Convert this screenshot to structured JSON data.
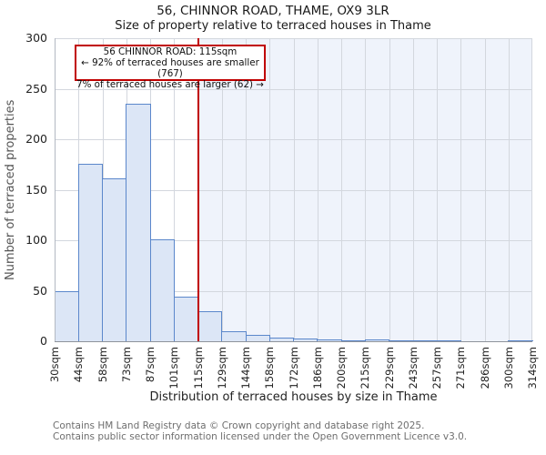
{
  "title": "56, CHINNOR ROAD, THAME, OX9 3LR",
  "subtitle": "Size of property relative to terraced houses in Thame",
  "annotation": {
    "line1": "56 CHINNOR ROAD: 115sqm",
    "line2": "← 92% of terraced houses are smaller (767)",
    "line3": "7% of terraced houses are larger (62) →"
  },
  "chart_data": {
    "type": "bar",
    "subtype": "histogram",
    "title": "56, CHINNOR ROAD, THAME, OX9 3LR",
    "subtitle": "Size of property relative to terraced houses in Thame",
    "xlabel": "Distribution of terraced houses by size in Thame",
    "ylabel": "Number of terraced properties",
    "tick_suffix": "sqm",
    "bin_edges": [
      30,
      44,
      58,
      73,
      87,
      101,
      115,
      129,
      144,
      158,
      172,
      186,
      200,
      215,
      229,
      243,
      257,
      271,
      286,
      300,
      314
    ],
    "values": [
      50,
      176,
      161,
      235,
      101,
      44,
      30,
      10,
      6,
      4,
      3,
      2,
      1,
      2,
      1,
      1,
      1,
      0,
      0,
      1
    ],
    "marker_value": 115,
    "smaller_count": 767,
    "larger_count": 62,
    "smaller_pct": 92,
    "larger_pct": 7,
    "ylim": [
      0,
      300
    ],
    "ytick_step": 50,
    "grid": true,
    "legend": "none"
  },
  "footer": {
    "line1": "Contains HM Land Registry data © Crown copyright and database right 2025.",
    "line2": "Contains public sector information licensed under the Open Government Licence v3.0."
  },
  "colors": {
    "bar_fill": "#dce6f6",
    "bar_border": "#5b87cb",
    "marker_line": "#c00000",
    "annotation_border": "#c00000",
    "shaded_region": "#eff3fb",
    "gridline": "#d3d7de"
  }
}
